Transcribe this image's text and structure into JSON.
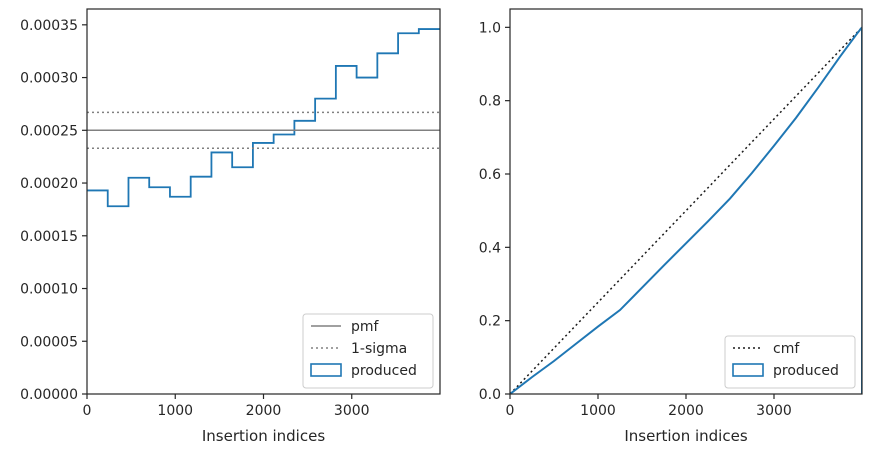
{
  "chart_data": [
    {
      "type": "step",
      "xlabel": "Insertion indices",
      "ylabel": "",
      "xlim": [
        0,
        4000
      ],
      "ylim": [
        0,
        0.000365
      ],
      "xticks": [
        "0",
        "1000",
        "2000",
        "3000"
      ],
      "yticks": [
        "0.00000",
        "0.00005",
        "0.00010",
        "0.00015",
        "0.00020",
        "0.00025",
        "0.00030",
        "0.00035"
      ],
      "legend_position": "lower-right",
      "series": [
        {
          "name": "produced",
          "kind": "histogram-step",
          "color": "#1f77b4",
          "bin_edges": [
            0,
            235,
            470,
            705,
            940,
            1175,
            1410,
            1645,
            1880,
            2115,
            2350,
            2585,
            2820,
            3055,
            3290,
            3525,
            3760,
            4000
          ],
          "values": [
            0.000193,
            0.000178,
            0.000205,
            0.000196,
            0.000187,
            0.000206,
            0.000229,
            0.000215,
            0.000238,
            0.000246,
            0.000259,
            0.00028,
            0.000311,
            0.0003,
            0.000323,
            0.000342,
            0.000346
          ]
        },
        {
          "name": "pmf",
          "kind": "hline",
          "color": "#808080",
          "style": "solid",
          "y": 0.00025
        },
        {
          "name": "1-sigma",
          "kind": "hline",
          "color": "#808080",
          "style": "dotted",
          "y_values": [
            0.000267,
            0.000233
          ]
        }
      ]
    },
    {
      "type": "line",
      "xlabel": "Insertion indices",
      "ylabel": "",
      "xlim": [
        0,
        4000
      ],
      "ylim": [
        0,
        1.05
      ],
      "xticks": [
        "0",
        "1000",
        "2000",
        "3000"
      ],
      "yticks": [
        "0.0",
        "0.2",
        "0.4",
        "0.6",
        "0.8",
        "1.0"
      ],
      "legend_position": "lower-right",
      "series": [
        {
          "name": "cmf",
          "kind": "line",
          "color": "#1a1a1a",
          "style": "dotted",
          "x": [
            0,
            4000
          ],
          "y": [
            0,
            1.0
          ]
        },
        {
          "name": "produced",
          "kind": "cumulative-step",
          "color": "#1f77b4",
          "x": [
            0,
            250,
            500,
            750,
            1000,
            1250,
            1500,
            1750,
            2000,
            2250,
            2500,
            2750,
            3000,
            3250,
            3500,
            3750,
            3950,
            4000
          ],
          "y": [
            0,
            0.046,
            0.09,
            0.137,
            0.184,
            0.229,
            0.29,
            0.351,
            0.411,
            0.471,
            0.533,
            0.603,
            0.677,
            0.753,
            0.835,
            0.92,
            0.985,
            1.0
          ]
        }
      ]
    }
  ]
}
